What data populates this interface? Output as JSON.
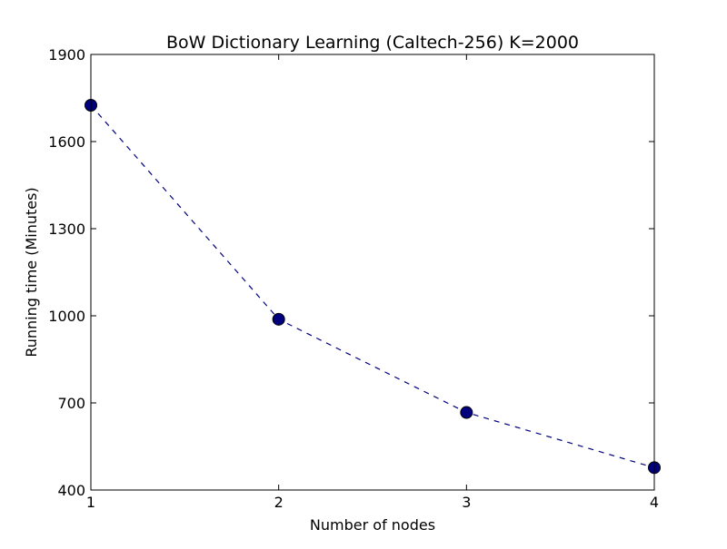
{
  "chart_data": {
    "type": "line",
    "title": "BoW Dictionary Learning (Caltech-256) K=2000",
    "xlabel": "Number of nodes",
    "ylabel": "Running time (Minutes)",
    "xlim": [
      1,
      4
    ],
    "ylim": [
      400,
      1900
    ],
    "xticks": [
      "1",
      "2",
      "3",
      "4"
    ],
    "yticks": [
      "400",
      "700",
      "1000",
      "1300",
      "1600",
      "1900"
    ],
    "grid": false,
    "legend": "none",
    "series": [
      {
        "x": [
          1,
          2,
          3,
          4
        ],
        "values": [
          1725,
          988,
          667,
          477
        ],
        "color": "#00007f",
        "line_style": "dashed",
        "marker": "circle"
      }
    ]
  }
}
